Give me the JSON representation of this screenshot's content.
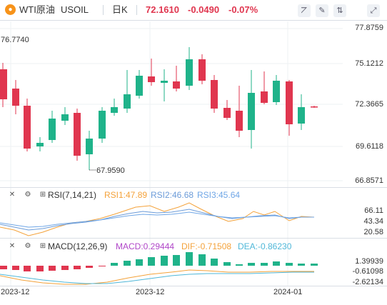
{
  "header": {
    "instrument": "WTI原油",
    "symbol": "USOIL",
    "period": "日K",
    "price": "72.1610",
    "change": "-0.0490",
    "change_pct": "-0.07%",
    "up_color": "#1fb38a",
    "down_color": "#e0364f"
  },
  "toolbar": {
    "icons": [
      "line-chart-icon",
      "draw-tool-icon",
      "indicator-icon",
      "fullscreen-icon"
    ],
    "glyphs": [
      "⦢",
      "✎",
      "⇅",
      "⤢"
    ]
  },
  "price_axis": [
    "77.8759",
    "75.1212",
    "72.3665",
    "69.6118",
    "66.8571"
  ],
  "high_label": "76.7740",
  "low_label": "67.9590",
  "rsi": {
    "label": "RSI(7,14,21)",
    "rsi1": "RSI1:47.89",
    "rsi2": "RSI2:46.68",
    "rsi3": "RSI3:45.64",
    "axis": [
      "66.11",
      "43.34",
      "20.58"
    ],
    "colors": [
      "#f4a23a",
      "#6b9bd8",
      "#6fa6e6"
    ]
  },
  "macd": {
    "label": "MACD(12,26,9)",
    "macd_val": "MACD:0.29444",
    "dif": "DIF:-0.71508",
    "dea": "DEA:-0.86230",
    "axis": [
      "1.39939",
      "-0.61098",
      "-2.62134"
    ],
    "colors": [
      "#b046c8",
      "#f4a23a",
      "#4fb7d8"
    ]
  },
  "dates": [
    "2023-12",
    "2023-12",
    "2024-01"
  ]
}
